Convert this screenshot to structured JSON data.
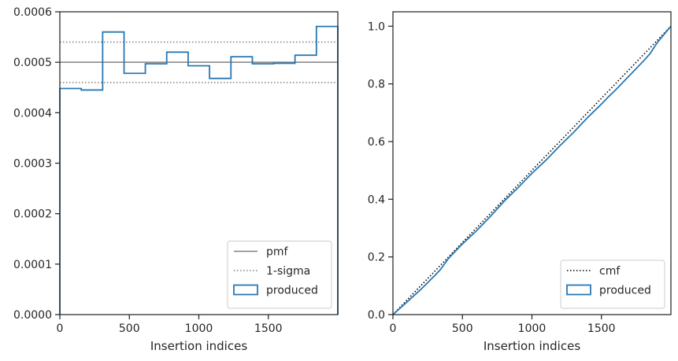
{
  "chart_data": [
    {
      "type": "step",
      "xlabel": "Insertion indices",
      "ylabel": "",
      "xlim": [
        0,
        2000
      ],
      "ylim": [
        0,
        0.0006
      ],
      "xticks": [
        0,
        500,
        1000,
        1500
      ],
      "xtick_labels": [
        "0",
        "500",
        "1000",
        "1500"
      ],
      "yticks": [
        0,
        0.0001,
        0.0002,
        0.0003,
        0.0004,
        0.0005,
        0.0006
      ],
      "ytick_labels": [
        "0.0000",
        "0.0001",
        "0.0002",
        "0.0003",
        "0.0004",
        "0.0005",
        "0.0006"
      ],
      "grid": false,
      "legend_position": "lower-right",
      "reference_lines": [
        {
          "name": "pmf",
          "y": 0.0005,
          "color": "#808080",
          "dash": "solid"
        },
        {
          "name": "1-sigma",
          "y": 0.00054,
          "color": "#808080",
          "dash": "dotted"
        },
        {
          "name": "1-sigma",
          "y": 0.00046,
          "color": "#808080",
          "dash": "dotted"
        }
      ],
      "series": [
        {
          "name": "produced",
          "color": "#2878b5",
          "bin_edges": [
            0,
            154,
            308,
            462,
            615,
            769,
            923,
            1077,
            1231,
            1385,
            1538,
            1692,
            1846,
            2000
          ],
          "values": [
            0.000448,
            0.000445,
            0.00056,
            0.000478,
            0.000497,
            0.00052,
            0.000493,
            0.000468,
            0.000511,
            0.000497,
            0.000498,
            0.000514,
            0.000571
          ]
        }
      ],
      "legend": [
        {
          "label": "pmf",
          "style": "line-solid",
          "color": "#808080"
        },
        {
          "label": "1-sigma",
          "style": "line-dotted",
          "color": "#808080"
        },
        {
          "label": "produced",
          "style": "patch",
          "color": "#2878b5"
        }
      ]
    },
    {
      "type": "line",
      "xlabel": "Insertion indices",
      "ylabel": "",
      "xlim": [
        0,
        2000
      ],
      "ylim": [
        0,
        1.05
      ],
      "xticks": [
        0,
        500,
        1000,
        1500
      ],
      "xtick_labels": [
        "0",
        "500",
        "1000",
        "1500"
      ],
      "yticks": [
        0,
        0.2,
        0.4,
        0.6,
        0.8,
        1.0
      ],
      "ytick_labels": [
        "0.0",
        "0.2",
        "0.4",
        "0.6",
        "0.8",
        "1.0"
      ],
      "grid": false,
      "legend_position": "lower-right",
      "series": [
        {
          "name": "cmf",
          "color": "#000000",
          "dash": "dotted",
          "x": [
            0,
            2000
          ],
          "y": [
            0,
            1.0
          ]
        },
        {
          "name": "produced",
          "color": "#2878b5",
          "dash": "solid",
          "x": [
            0,
            100,
            200,
            300,
            340,
            400,
            500,
            600,
            700,
            800,
            900,
            1000,
            1100,
            1200,
            1300,
            1400,
            1500,
            1550,
            1600,
            1700,
            1800,
            1850,
            1900,
            2000
          ],
          "y": [
            0,
            0.043,
            0.087,
            0.135,
            0.155,
            0.195,
            0.245,
            0.29,
            0.34,
            0.393,
            0.44,
            0.49,
            0.535,
            0.585,
            0.632,
            0.683,
            0.73,
            0.755,
            0.778,
            0.828,
            0.878,
            0.905,
            0.942,
            1.0
          ]
        }
      ],
      "legend": [
        {
          "label": "cmf",
          "style": "line-dotted",
          "color": "#000000"
        },
        {
          "label": "produced",
          "style": "patch",
          "color": "#2878b5"
        }
      ]
    }
  ]
}
